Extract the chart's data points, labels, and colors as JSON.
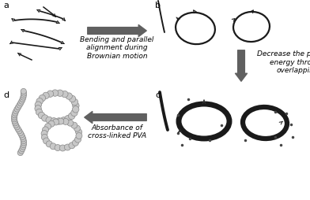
{
  "bg_color": "#ffffff",
  "arrow_color": "#606060",
  "label_a": "a",
  "label_b": "b",
  "label_c": "c",
  "label_d": "d",
  "text_ab": "Bending and parallel\nalignment during\nBrownian motion",
  "text_bc": "Decrease the potential\nenergy through\noverlapping",
  "text_cd": "Absorbance of\ncross-linked PVA",
  "label_fontsize": 8,
  "text_fontsize": 6.5,
  "wire_color": "#1a1a1a",
  "ring_thin_color": "#1a1a1a",
  "ring_thick_color": "#111111",
  "bead_color_face": "#c8c8c8",
  "bead_color_edge": "#888888",
  "dot_color": "#444444",
  "small_arrow_color": "#333333"
}
